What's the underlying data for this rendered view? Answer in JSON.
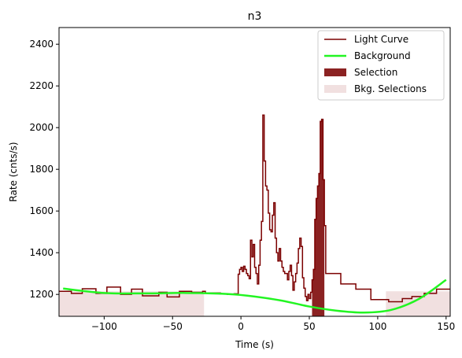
{
  "chart_data": {
    "type": "line",
    "title": "n3",
    "xlabel": "Time (s)",
    "ylabel": "Rate (cnts/s)",
    "xlim": [
      -133,
      153
    ],
    "ylim": [
      1095,
      2480
    ],
    "xticks": [
      -100,
      -50,
      0,
      50,
      100,
      150
    ],
    "xtick_labels": [
      "−100",
      "−50",
      "0",
      "50",
      "100",
      "150"
    ],
    "yticks": [
      1200,
      1400,
      1600,
      1800,
      2000,
      2200,
      2400
    ],
    "ytick_labels": [
      "1200",
      "1400",
      "1600",
      "1800",
      "2000",
      "2200",
      "2400"
    ],
    "grid": false,
    "legend_position": "top-right",
    "colors": {
      "light_curve": "#7b0000",
      "background": "#22f522",
      "selection": "#8b2222",
      "bkg_selection": "#f1e0e0"
    },
    "legend": [
      {
        "label": "Light Curve",
        "kind": "line",
        "color": "#7b0000"
      },
      {
        "label": "Background",
        "kind": "line",
        "color": "#22f522"
      },
      {
        "label": "Selection",
        "kind": "patch",
        "color": "#8b2222"
      },
      {
        "label": "Bkg. Selections",
        "kind": "patch",
        "color": "#f1e0e0"
      }
    ],
    "series": [
      {
        "name": "Light Curve",
        "steps": [
          [
            -133,
            1215
          ],
          [
            -124,
            1205
          ],
          [
            -116,
            1227
          ],
          [
            -106,
            1205
          ],
          [
            -98,
            1235
          ],
          [
            -88,
            1200
          ],
          [
            -80,
            1225
          ],
          [
            -72,
            1193
          ],
          [
            -60,
            1210
          ],
          [
            -54,
            1188
          ],
          [
            -45,
            1215
          ],
          [
            -36,
            1210
          ],
          [
            -28,
            1215
          ],
          [
            -26,
            1207
          ],
          [
            -15,
            1202
          ],
          [
            -10,
            1200
          ],
          [
            -5,
            1203
          ],
          [
            -3,
            1200
          ],
          [
            -2,
            1297
          ],
          [
            -1,
            1320
          ],
          [
            0,
            1330
          ],
          [
            1,
            1310
          ],
          [
            2,
            1335
          ],
          [
            3,
            1320
          ],
          [
            4,
            1300
          ],
          [
            5,
            1290
          ],
          [
            6,
            1275
          ],
          [
            7,
            1460
          ],
          [
            8,
            1380
          ],
          [
            9,
            1440
          ],
          [
            10,
            1330
          ],
          [
            11,
            1300
          ],
          [
            12,
            1250
          ],
          [
            13,
            1340
          ],
          [
            14,
            1460
          ],
          [
            15,
            1550
          ],
          [
            16,
            2060
          ],
          [
            17,
            1840
          ],
          [
            18,
            1720
          ],
          [
            19,
            1700
          ],
          [
            20,
            1590
          ],
          [
            21,
            1510
          ],
          [
            22,
            1500
          ],
          [
            23,
            1580
          ],
          [
            24,
            1640
          ],
          [
            25,
            1470
          ],
          [
            26,
            1400
          ],
          [
            27,
            1360
          ],
          [
            28,
            1420
          ],
          [
            29,
            1360
          ],
          [
            30,
            1330
          ],
          [
            31,
            1310
          ],
          [
            32,
            1300
          ],
          [
            34,
            1270
          ],
          [
            35,
            1310
          ],
          [
            36,
            1340
          ],
          [
            37,
            1290
          ],
          [
            38,
            1220
          ],
          [
            39,
            1260
          ],
          [
            40,
            1300
          ],
          [
            41,
            1350
          ],
          [
            42,
            1420
          ],
          [
            43,
            1470
          ],
          [
            44,
            1430
          ],
          [
            45,
            1280
          ],
          [
            46,
            1230
          ],
          [
            47,
            1190
          ],
          [
            48,
            1170
          ],
          [
            49,
            1200
          ],
          [
            50,
            1180
          ],
          [
            51,
            1210
          ],
          [
            52,
            1270
          ],
          [
            53,
            1320
          ],
          [
            54,
            1560
          ],
          [
            55,
            1660
          ],
          [
            56,
            1720
          ],
          [
            57,
            1780
          ],
          [
            58,
            2030
          ],
          [
            59,
            2040
          ],
          [
            60,
            1750
          ],
          [
            61,
            1530
          ],
          [
            62,
            1300
          ],
          [
            73,
            1250
          ],
          [
            84,
            1225
          ],
          [
            95,
            1175
          ],
          [
            108,
            1165
          ],
          [
            118,
            1180
          ],
          [
            125,
            1190
          ],
          [
            134,
            1205
          ],
          [
            143,
            1225
          ],
          [
            153,
            1225
          ]
        ]
      },
      {
        "name": "Background",
        "x": [
          -130,
          -100,
          -70,
          -40,
          -10,
          10,
          30,
          50,
          70,
          90,
          110,
          130,
          150
        ],
        "y": [
          1228,
          1207,
          1205,
          1207,
          1202,
          1190,
          1170,
          1142,
          1122,
          1113,
          1126,
          1178,
          1270
        ]
      }
    ],
    "selection": [
      52,
      61
    ],
    "bkg_selections": [
      [
        -133,
        -27
      ],
      [
        106,
        153
      ]
    ]
  }
}
